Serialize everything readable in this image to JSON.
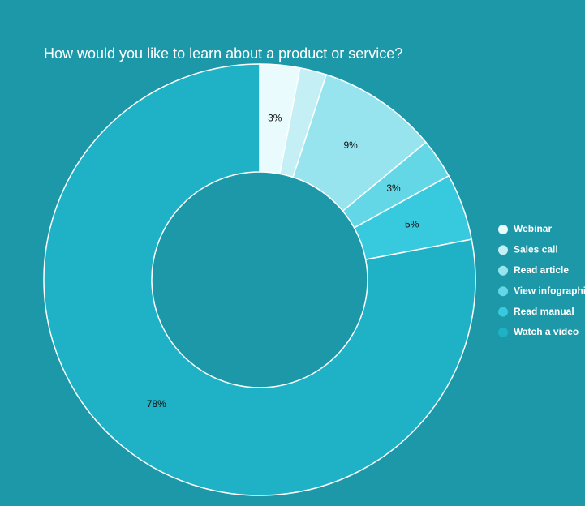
{
  "chart_data": {
    "type": "donut",
    "title": "How would you like to learn about a product or service?",
    "categories": [
      "Webinar",
      "Sales call",
      "Read article",
      "View infographic",
      "Read manual",
      "Watch a video"
    ],
    "values": [
      3,
      2,
      9,
      3,
      5,
      78
    ],
    "value_labels": [
      "3%",
      null,
      "9%",
      "3%",
      "5%",
      "78%"
    ],
    "colors": [
      "#e9fbfd",
      "#c4eff5",
      "#97e4ef",
      "#63d7e6",
      "#37cadf",
      "#1fb2c6"
    ],
    "legend": "right"
  }
}
